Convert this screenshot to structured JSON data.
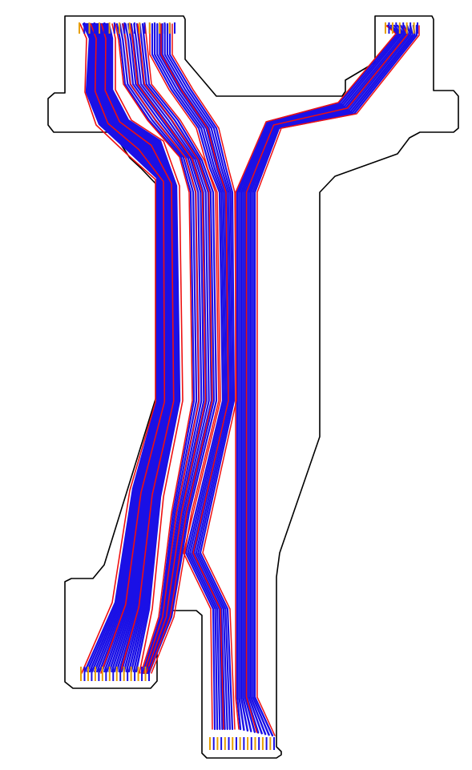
{
  "diagram": {
    "type": "flex-pcb-layout",
    "colors": {
      "outline": "#000000",
      "trace_primary": "#1a10e6",
      "trace_secondary": "#ee1111",
      "pad": "#e8a000",
      "background": "#ffffff"
    },
    "layers": [
      {
        "name": "",
        "color": "#1a10e6"
      },
      {
        "name": "",
        "color": "#ee1111"
      }
    ],
    "connectors": [
      {
        "id": "top-left",
        "pad_count": 20
      },
      {
        "id": "top-right",
        "pad_count": 10
      },
      {
        "id": "bottom-left",
        "pad_count": 20
      },
      {
        "id": "bottom-center",
        "pad_count": 18
      }
    ]
  }
}
